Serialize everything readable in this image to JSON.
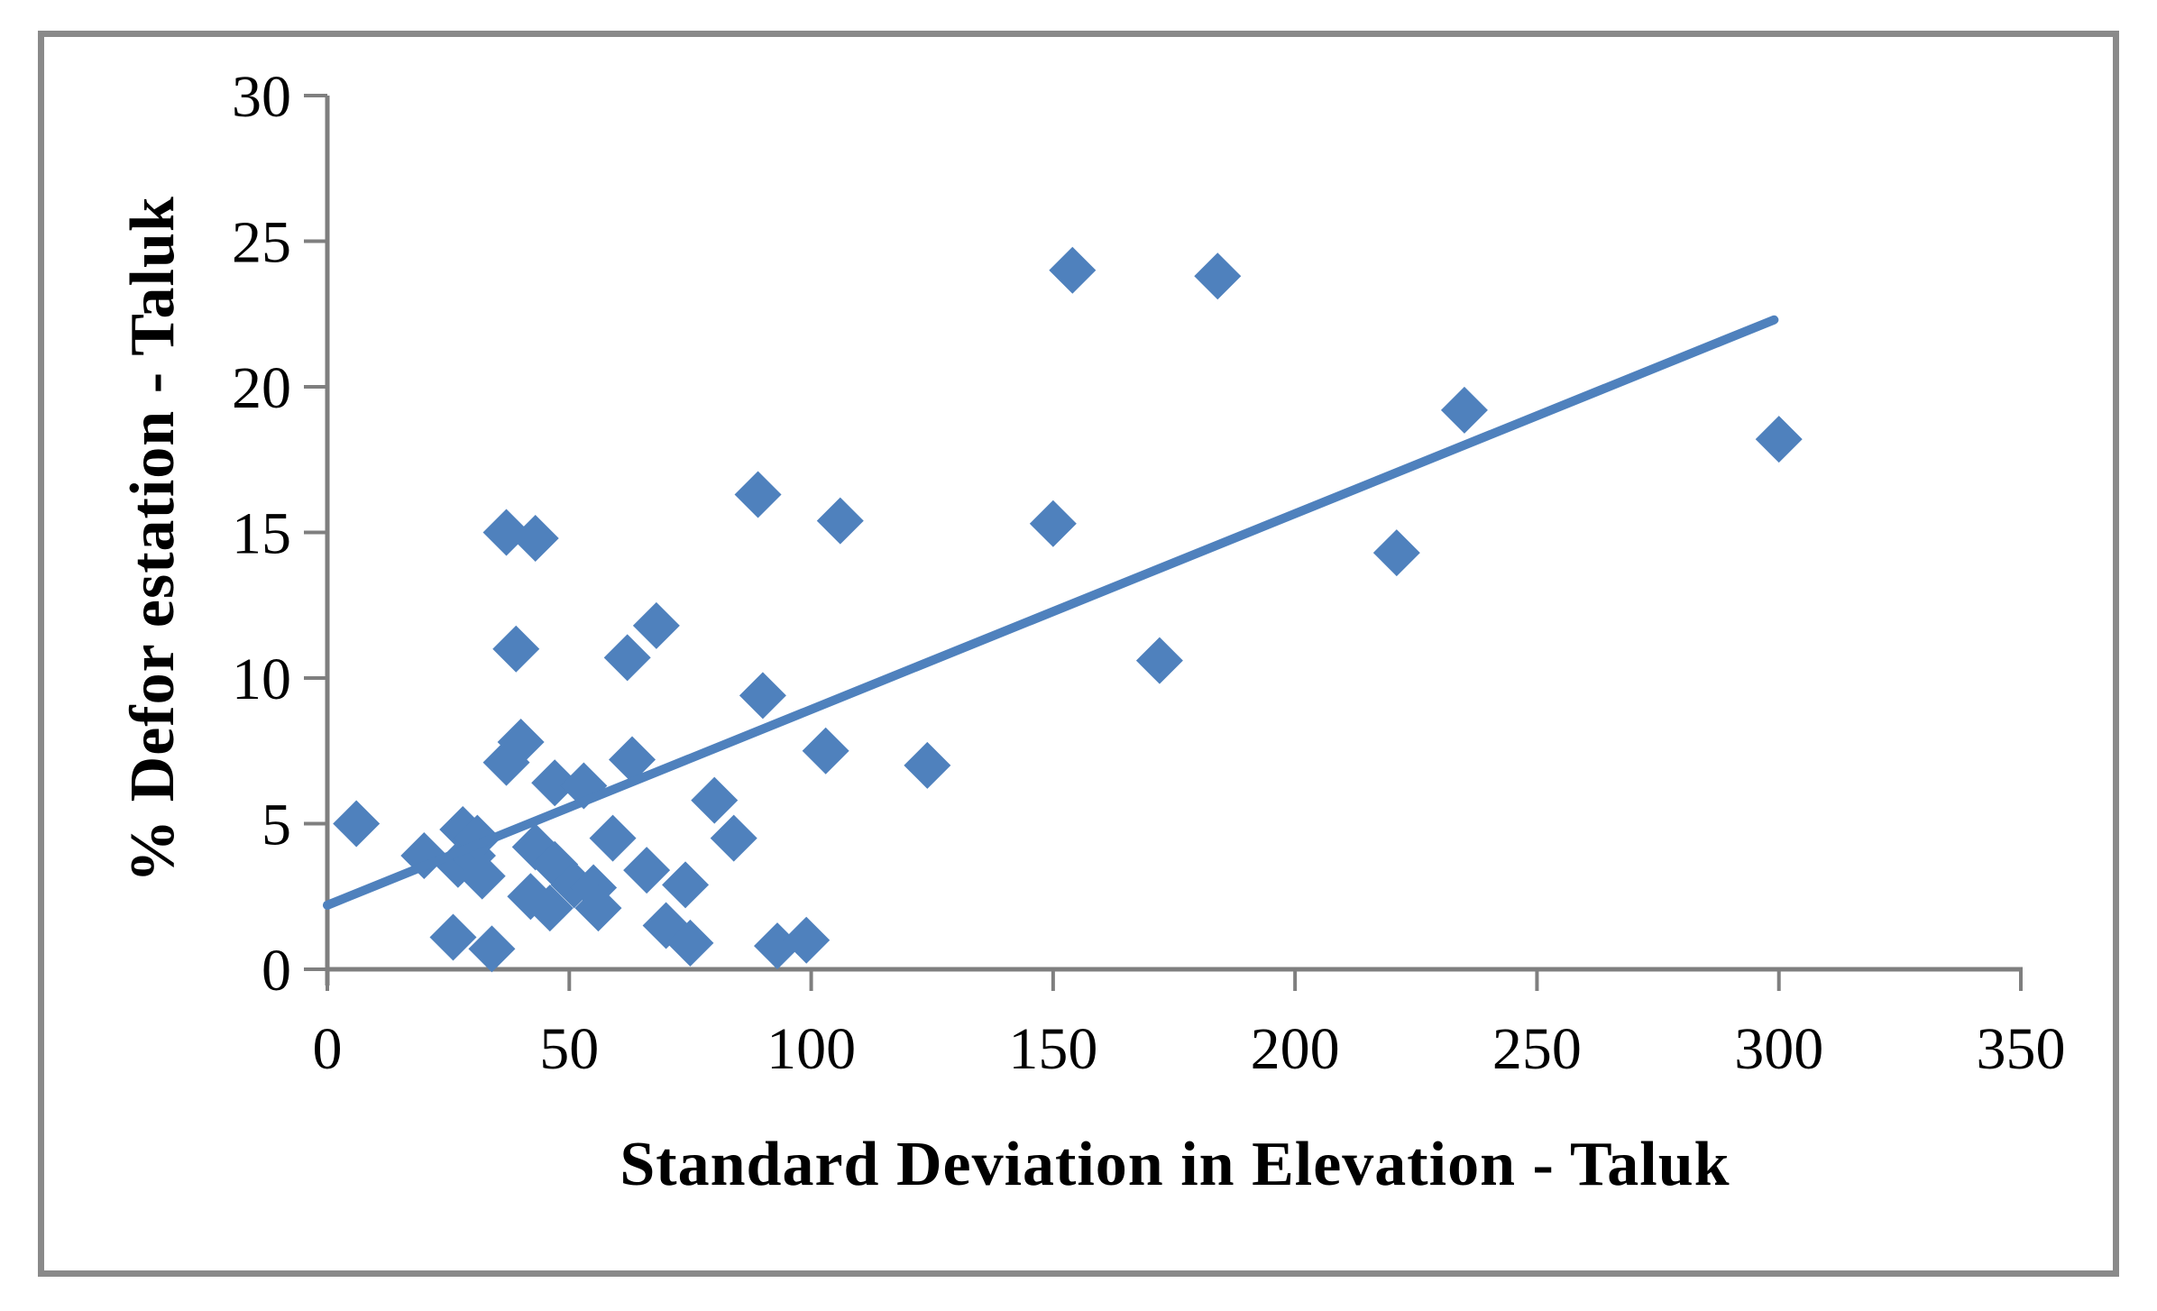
{
  "figure": {
    "background": "#ffffff",
    "border_color": "#8a8a8a"
  },
  "chart_data": {
    "type": "scatter",
    "title": "",
    "xlabel": "Standard Deviation in Elevation - Taluk",
    "ylabel": "% Defor estation - Taluk",
    "xlim": [
      0,
      350
    ],
    "ylim": [
      0,
      30
    ],
    "xticks": [
      0,
      50,
      100,
      150,
      200,
      250,
      300,
      350
    ],
    "yticks": [
      0,
      5,
      10,
      15,
      20,
      25,
      30
    ],
    "grid": false,
    "legend": false,
    "marker": "diamond",
    "marker_color": "#4F81BD",
    "axis_color": "#7F7F7F",
    "tick_label_color": "#000000",
    "trendline": {
      "x": [
        0,
        299
      ],
      "y": [
        2.2,
        22.3
      ],
      "color": "#4F81BD"
    },
    "points": [
      [
        6,
        5.0
      ],
      [
        20,
        3.9
      ],
      [
        26,
        1.1
      ],
      [
        27,
        3.6
      ],
      [
        28,
        4.8
      ],
      [
        30,
        3.9
      ],
      [
        31,
        4.5
      ],
      [
        32,
        3.2
      ],
      [
        34,
        0.7
      ],
      [
        37,
        7.1
      ],
      [
        37,
        15.0
      ],
      [
        39,
        11.0
      ],
      [
        40,
        7.8
      ],
      [
        42,
        2.5
      ],
      [
        43,
        4.2
      ],
      [
        43,
        14.8
      ],
      [
        46,
        2.1
      ],
      [
        47,
        3.6
      ],
      [
        47,
        6.4
      ],
      [
        51,
        2.9
      ],
      [
        53,
        6.3
      ],
      [
        55,
        2.8
      ],
      [
        56,
        2.1
      ],
      [
        59,
        4.5
      ],
      [
        62,
        10.7
      ],
      [
        63,
        7.2
      ],
      [
        66,
        3.4
      ],
      [
        68,
        11.8
      ],
      [
        70,
        1.5
      ],
      [
        74,
        2.9
      ],
      [
        75,
        0.9
      ],
      [
        80,
        5.8
      ],
      [
        84,
        4.5
      ],
      [
        89,
        16.3
      ],
      [
        90,
        9.4
      ],
      [
        93,
        0.8
      ],
      [
        99,
        1.0
      ],
      [
        103,
        7.5
      ],
      [
        106,
        15.4
      ],
      [
        124,
        7.0
      ],
      [
        150,
        15.3
      ],
      [
        154,
        24.0
      ],
      [
        172,
        10.6
      ],
      [
        184,
        23.8
      ],
      [
        221,
        14.3
      ],
      [
        235,
        19.2
      ],
      [
        300,
        18.2
      ]
    ]
  }
}
